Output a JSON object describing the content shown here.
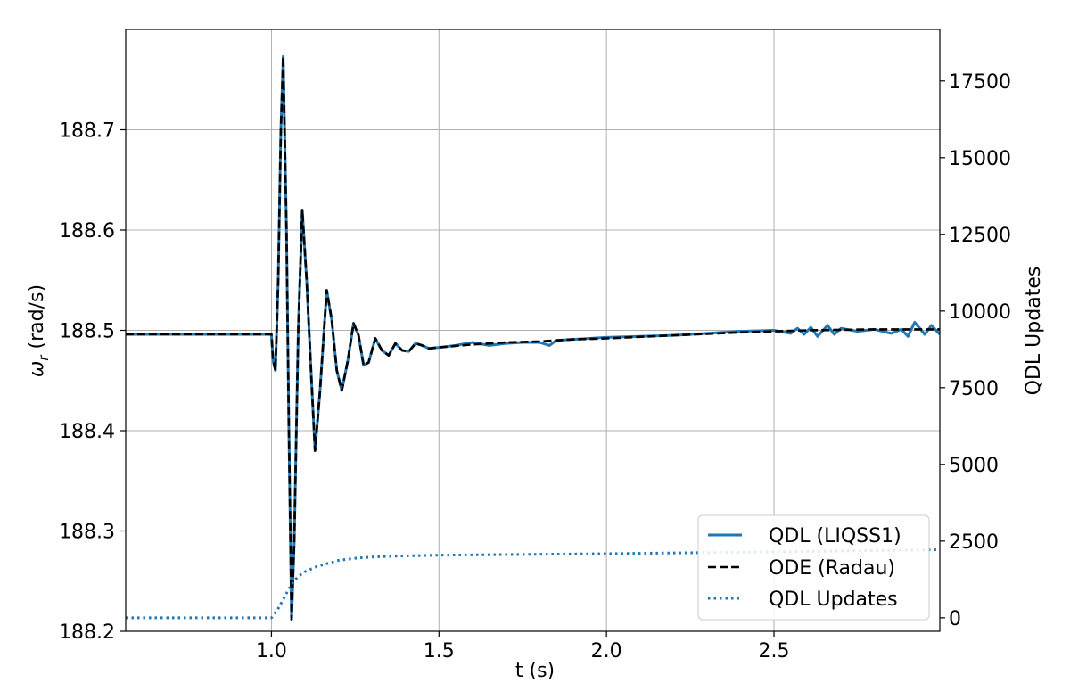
{
  "chart_data": {
    "type": "line",
    "xlabel": "t (s)",
    "ylabel": "ω_r (rad/s)",
    "ylabel_symbol": "ω",
    "ylabel_subscript": "r",
    "ylabel_unit": " (rad/s)",
    "y2label": "QDL Updates",
    "xlim": [
      0.565,
      2.995
    ],
    "ylim": [
      188.2,
      188.8
    ],
    "y2lim": [
      -440,
      19180
    ],
    "xticks": [
      1.0,
      1.5,
      2.0,
      2.5
    ],
    "xtick_labels": [
      "1.0",
      "1.5",
      "2.0",
      "2.5"
    ],
    "yticks": [
      188.2,
      188.3,
      188.4,
      188.5,
      188.6,
      188.7
    ],
    "ytick_labels": [
      "188.2",
      "188.3",
      "188.4",
      "188.5",
      "188.6",
      "188.7"
    ],
    "y2ticks": [
      0,
      2500,
      5000,
      7500,
      10000,
      12500,
      15000,
      17500
    ],
    "y2tick_labels": [
      "0",
      "2500",
      "5000",
      "7500",
      "10000",
      "12500",
      "15000",
      "17500"
    ],
    "grid": true,
    "legend_position": "lower-right",
    "colors": {
      "qdl": "#1f77b4",
      "ode": "#000000",
      "updates": "#1f77b4",
      "grid": "#b0b0b0"
    },
    "series": [
      {
        "name": "QDL (LIQSS1)",
        "axis": "left",
        "style": "solid",
        "x": [
          0.565,
          1.0,
          1.005,
          1.012,
          1.02,
          1.028,
          1.035,
          1.045,
          1.052,
          1.06,
          1.068,
          1.08,
          1.092,
          1.105,
          1.118,
          1.13,
          1.145,
          1.165,
          1.18,
          1.195,
          1.21,
          1.228,
          1.245,
          1.26,
          1.275,
          1.29,
          1.31,
          1.33,
          1.35,
          1.37,
          1.39,
          1.41,
          1.43,
          1.45,
          1.47,
          1.5,
          1.55,
          1.6,
          1.65,
          1.7,
          1.75,
          1.8,
          1.83,
          1.85,
          1.9,
          2.0,
          2.1,
          2.2,
          2.3,
          2.4,
          2.5,
          2.55,
          2.57,
          2.59,
          2.61,
          2.63,
          2.66,
          2.68,
          2.7,
          2.75,
          2.8,
          2.85,
          2.88,
          2.9,
          2.92,
          2.95,
          2.97,
          2.995
        ],
        "y": [
          188.496,
          188.496,
          188.47,
          188.46,
          188.55,
          188.7,
          188.773,
          188.6,
          188.4,
          188.212,
          188.29,
          188.5,
          188.62,
          188.55,
          188.46,
          188.38,
          188.44,
          188.54,
          188.51,
          188.46,
          188.44,
          188.47,
          188.507,
          188.495,
          188.465,
          188.468,
          188.492,
          188.48,
          188.475,
          188.487,
          188.48,
          188.479,
          188.487,
          188.485,
          188.482,
          188.483,
          188.485,
          188.488,
          188.485,
          188.487,
          188.488,
          188.488,
          188.485,
          188.49,
          188.491,
          188.493,
          188.494,
          188.495,
          188.497,
          188.499,
          188.5,
          188.497,
          188.502,
          188.496,
          188.503,
          188.494,
          188.505,
          188.496,
          188.502,
          188.499,
          188.501,
          188.497,
          188.501,
          188.494,
          188.508,
          188.496,
          188.505,
          188.496
        ]
      },
      {
        "name": "ODE (Radau)",
        "axis": "left",
        "style": "dashed",
        "x": [
          0.565,
          1.0,
          1.005,
          1.012,
          1.02,
          1.028,
          1.035,
          1.045,
          1.052,
          1.06,
          1.068,
          1.08,
          1.092,
          1.105,
          1.118,
          1.13,
          1.145,
          1.165,
          1.18,
          1.195,
          1.21,
          1.228,
          1.245,
          1.26,
          1.275,
          1.29,
          1.31,
          1.33,
          1.35,
          1.37,
          1.39,
          1.41,
          1.43,
          1.45,
          1.47,
          1.5,
          1.6,
          1.7,
          1.8,
          1.9,
          2.0,
          2.2,
          2.4,
          2.6,
          2.8,
          2.995
        ],
        "y": [
          188.496,
          188.496,
          188.47,
          188.46,
          188.55,
          188.7,
          188.773,
          188.6,
          188.4,
          188.212,
          188.29,
          188.5,
          188.62,
          188.55,
          188.46,
          188.38,
          188.44,
          188.54,
          188.51,
          188.46,
          188.44,
          188.47,
          188.507,
          188.495,
          188.465,
          188.468,
          188.492,
          188.48,
          188.475,
          188.487,
          188.48,
          188.479,
          188.487,
          188.485,
          188.482,
          188.483,
          188.486,
          188.488,
          188.489,
          188.491,
          188.492,
          188.495,
          188.498,
          188.5,
          188.501,
          188.501
        ]
      },
      {
        "name": "QDL Updates",
        "axis": "right",
        "style": "dotted",
        "x": [
          0.565,
          1.0,
          1.02,
          1.04,
          1.06,
          1.08,
          1.1,
          1.13,
          1.16,
          1.2,
          1.25,
          1.3,
          1.4,
          1.5,
          1.7,
          2.0,
          2.5,
          2.995
        ],
        "y": [
          0,
          0,
          300,
          700,
          1100,
          1350,
          1500,
          1650,
          1750,
          1870,
          1940,
          1980,
          2020,
          2040,
          2060,
          2090,
          2150,
          2220
        ]
      }
    ]
  }
}
